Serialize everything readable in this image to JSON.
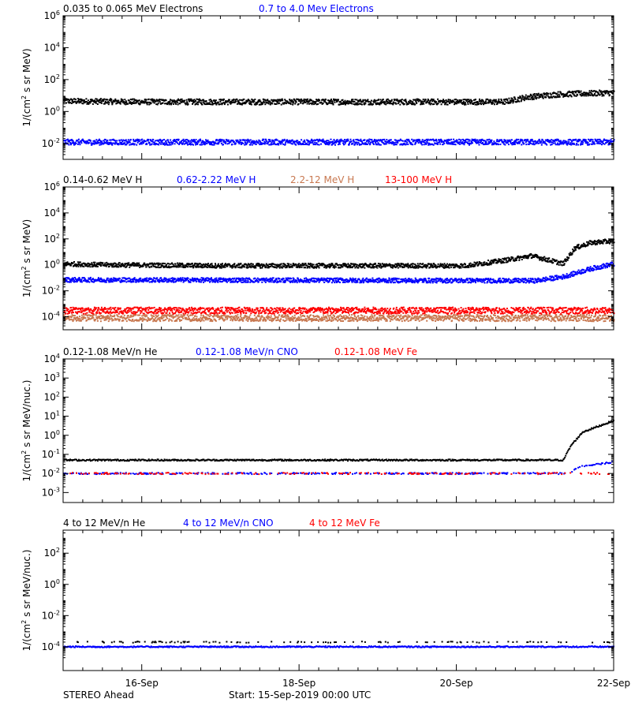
{
  "footer": {
    "left": "STEREO Ahead",
    "center": "Start: 15-Sep-2019 00:00 UTC"
  },
  "colors": {
    "black": "#000000",
    "blue": "#0000ff",
    "brown": "#c87850",
    "red": "#ff0000"
  },
  "chart_data": [
    {
      "type": "scatter",
      "ylabel": "1/(cm² s sr MeV)",
      "ylim": [
        0.001,
        1000000
      ],
      "log_y": true,
      "y_ticks": [
        {
          "exp": -2,
          "label": "10-2"
        },
        {
          "exp": 0,
          "label": "100"
        },
        {
          "exp": 2,
          "label": "102"
        },
        {
          "exp": 4,
          "label": "104"
        },
        {
          "exp": 6,
          "label": "106"
        }
      ],
      "series": [
        {
          "name": "0.035 to 0.065 MeV Electrons",
          "color": "#000000",
          "profile": [
            [
              0,
              4.5
            ],
            [
              1,
              4.0
            ],
            [
              2,
              4.0
            ],
            [
              3,
              4.0
            ],
            [
              4,
              4.0
            ],
            [
              5,
              4.0
            ],
            [
              5.6,
              4.0
            ],
            [
              5.9,
              8.0
            ],
            [
              6.3,
              12.0
            ],
            [
              7,
              15.0
            ]
          ]
        },
        {
          "name": "0.7 to 4.0 Mev Electrons",
          "color": "#0000ff",
          "profile": [
            [
              0,
              0.012
            ],
            [
              7,
              0.012
            ]
          ]
        }
      ]
    },
    {
      "type": "scatter",
      "ylabel": "1/(cm² s sr MeV)",
      "ylim": [
        1e-05,
        1000000
      ],
      "log_y": true,
      "y_ticks": [
        {
          "exp": -4,
          "label": "10-4"
        },
        {
          "exp": -2,
          "label": "10-2"
        },
        {
          "exp": 0,
          "label": "100"
        },
        {
          "exp": 2,
          "label": "102"
        },
        {
          "exp": 4,
          "label": "104"
        },
        {
          "exp": 6,
          "label": "106"
        }
      ],
      "series": [
        {
          "name": "0.14-0.62 MeV H",
          "color": "#000000",
          "profile": [
            [
              0,
              1.2
            ],
            [
              0.5,
              1.0
            ],
            [
              2,
              0.85
            ],
            [
              4,
              0.85
            ],
            [
              5.1,
              0.85
            ],
            [
              5.5,
              1.8
            ],
            [
              5.75,
              3.0
            ],
            [
              5.95,
              5.0
            ],
            [
              6.35,
              1.2
            ],
            [
              6.5,
              20
            ],
            [
              6.7,
              50
            ],
            [
              7,
              70
            ]
          ]
        },
        {
          "name": "0.62-2.22 MeV H",
          "color": "#0000ff",
          "profile": [
            [
              0,
              0.07
            ],
            [
              6.0,
              0.06
            ],
            [
              6.35,
              0.12
            ],
            [
              6.7,
              0.5
            ],
            [
              7,
              1.2
            ]
          ]
        },
        {
          "name": "2.2-12 MeV H",
          "color": "#c87850",
          "profile": [
            [
              0,
              8e-05
            ],
            [
              7,
              8e-05
            ]
          ]
        },
        {
          "name": "13-100 MeV H",
          "color": "#ff0000",
          "profile": [
            [
              0,
              0.0003
            ],
            [
              7,
              0.0003
            ]
          ]
        }
      ]
    },
    {
      "type": "scatter",
      "ylabel": "1/(cm² s sr MeV/nuc.)",
      "ylim": [
        0.0003,
        10000
      ],
      "log_y": true,
      "y_ticks": [
        {
          "exp": -3,
          "label": "10-3"
        },
        {
          "exp": -2,
          "label": "10-2"
        },
        {
          "exp": -1,
          "label": "10-1"
        },
        {
          "exp": 0,
          "label": "100"
        },
        {
          "exp": 1,
          "label": "101"
        },
        {
          "exp": 2,
          "label": "102"
        },
        {
          "exp": 3,
          "label": "103"
        },
        {
          "exp": 4,
          "label": "104"
        }
      ],
      "series": [
        {
          "name": "0.12-1.08 MeV/n He",
          "color": "#000000",
          "profile": [
            [
              0,
              0.05
            ],
            [
              6.35,
              0.05
            ],
            [
              6.45,
              0.3
            ],
            [
              6.6,
              1.5
            ],
            [
              6.8,
              3.0
            ],
            [
              7,
              6.0
            ]
          ]
        },
        {
          "name": "0.12-1.08 MeV/n CNO",
          "color": "#0000ff",
          "profile": [
            [
              0,
              0.01
            ],
            [
              6.4,
              0.01
            ],
            [
              6.6,
              0.025
            ],
            [
              7,
              0.04
            ]
          ]
        },
        {
          "name": "0.12-1.08 MeV Fe",
          "color": "#ff0000",
          "profile": [
            [
              0,
              0.01
            ],
            [
              7,
              0.01
            ]
          ]
        }
      ]
    },
    {
      "type": "scatter",
      "ylabel": "1/(cm² s sr MeV/nuc.)",
      "ylim": [
        3e-06,
        3000
      ],
      "log_y": true,
      "y_ticks": [
        {
          "exp": -4,
          "label": "10-4"
        },
        {
          "exp": -2,
          "label": "10-2"
        },
        {
          "exp": 0,
          "label": "100"
        },
        {
          "exp": 2,
          "label": "102"
        }
      ],
      "series": [
        {
          "name": "4 to 12 MeV/n He",
          "color": "#000000",
          "profile": [
            [
              0,
              0.0002
            ],
            [
              7,
              0.0002
            ]
          ]
        },
        {
          "name": "4 to 12 MeV/n CNO",
          "color": "#0000ff",
          "profile": [
            [
              0,
              0.0001
            ],
            [
              7,
              0.0001
            ]
          ]
        },
        {
          "name": "4 to 12 MeV Fe",
          "color": "#ff0000",
          "profile": []
        }
      ]
    }
  ],
  "x_axis": {
    "xlim": [
      "15-Sep-2019 00:00",
      "22-Sep-2019 00:00"
    ],
    "ticks": [
      {
        "label": "16-Sep"
      },
      {
        "label": "18-Sep"
      },
      {
        "label": "20-Sep"
      },
      {
        "label": "22-Sep"
      }
    ]
  }
}
